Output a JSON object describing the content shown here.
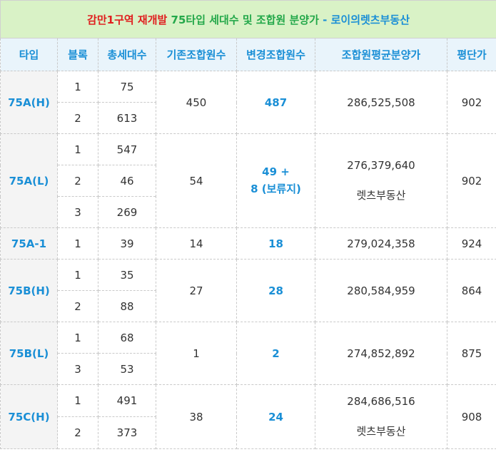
{
  "title": {
    "part1": "감만1구역 재개발",
    "part2": "75타입 세대수 및 조합원 분양가",
    "part3": "- 로이의렛츠부동산"
  },
  "headers": [
    "타입",
    "블록",
    "총세대수",
    "기존조합원수",
    "변경조합원수",
    "조합원평균분양가",
    "평단가"
  ],
  "groups": [
    {
      "type": "75A(H)",
      "rows": [
        {
          "block": "1",
          "units": "75"
        },
        {
          "block": "2",
          "units": "613"
        }
      ],
      "existing": "450",
      "changed": [
        "487"
      ],
      "price": [
        "286,525,508"
      ],
      "per_pyeong": "902"
    },
    {
      "type": "75A(L)",
      "rows": [
        {
          "block": "1",
          "units": "547"
        },
        {
          "block": "2",
          "units": "46"
        },
        {
          "block": "3",
          "units": "269"
        }
      ],
      "existing": "54",
      "changed": [
        "49 +",
        "8 (보류지)"
      ],
      "price": [
        "276,379,640",
        "렛츠부동산"
      ],
      "per_pyeong": "902"
    },
    {
      "type": "75A-1",
      "rows": [
        {
          "block": "1",
          "units": "39"
        }
      ],
      "existing": "14",
      "changed": [
        "18"
      ],
      "price": [
        "279,024,358"
      ],
      "per_pyeong": "924"
    },
    {
      "type": "75B(H)",
      "rows": [
        {
          "block": "1",
          "units": "35"
        },
        {
          "block": "2",
          "units": "88"
        }
      ],
      "existing": "27",
      "changed": [
        "28"
      ],
      "price": [
        "280,584,959"
      ],
      "per_pyeong": "864"
    },
    {
      "type": "75B(L)",
      "rows": [
        {
          "block": "1",
          "units": "68"
        },
        {
          "block": "3",
          "units": "53"
        }
      ],
      "existing": "1",
      "changed": [
        "2"
      ],
      "price": [
        "274,852,892"
      ],
      "per_pyeong": "875"
    },
    {
      "type": "75C(H)",
      "rows": [
        {
          "block": "1",
          "units": "491"
        },
        {
          "block": "2",
          "units": "373"
        }
      ],
      "existing": "38",
      "changed": [
        "24"
      ],
      "price": [
        "284,686,516",
        "렛츠부동산"
      ],
      "per_pyeong": "908"
    }
  ]
}
